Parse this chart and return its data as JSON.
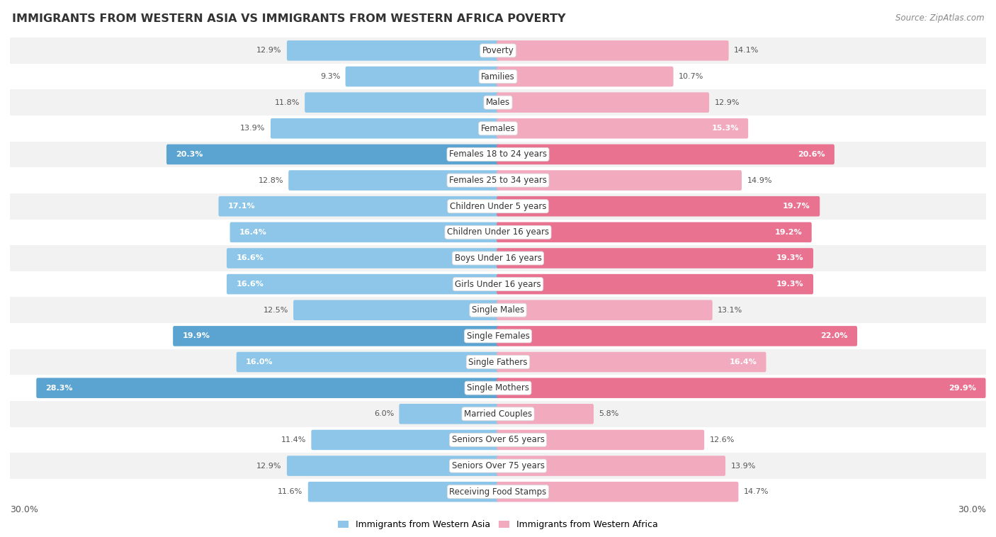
{
  "title": "IMMIGRANTS FROM WESTERN ASIA VS IMMIGRANTS FROM WESTERN AFRICA POVERTY",
  "source": "Source: ZipAtlas.com",
  "categories": [
    "Poverty",
    "Families",
    "Males",
    "Females",
    "Females 18 to 24 years",
    "Females 25 to 34 years",
    "Children Under 5 years",
    "Children Under 16 years",
    "Boys Under 16 years",
    "Girls Under 16 years",
    "Single Males",
    "Single Females",
    "Single Fathers",
    "Single Mothers",
    "Married Couples",
    "Seniors Over 65 years",
    "Seniors Over 75 years",
    "Receiving Food Stamps"
  ],
  "left_values": [
    12.9,
    9.3,
    11.8,
    13.9,
    20.3,
    12.8,
    17.1,
    16.4,
    16.6,
    16.6,
    12.5,
    19.9,
    16.0,
    28.3,
    6.0,
    11.4,
    12.9,
    11.6
  ],
  "right_values": [
    14.1,
    10.7,
    12.9,
    15.3,
    20.6,
    14.9,
    19.7,
    19.2,
    19.3,
    19.3,
    13.1,
    22.0,
    16.4,
    29.9,
    5.8,
    12.6,
    13.9,
    14.7
  ],
  "left_color_normal": "#8DC6E8",
  "left_color_highlight": "#5BA3D0",
  "right_color_normal": "#F2AABF",
  "right_color_highlight": "#E8728F",
  "highlight_threshold": 18.5,
  "label_left": "Immigrants from Western Asia",
  "label_right": "Immigrants from Western Africa",
  "x_max": 30.0,
  "fig_bg": "#ffffff",
  "row_colors": [
    "#f2f2f2",
    "#ffffff"
  ],
  "title_color": "#333333",
  "source_color": "#888888",
  "label_color": "#555555",
  "inside_label_color": "#ffffff",
  "outside_label_color": "#555555",
  "inside_threshold": 15.0
}
